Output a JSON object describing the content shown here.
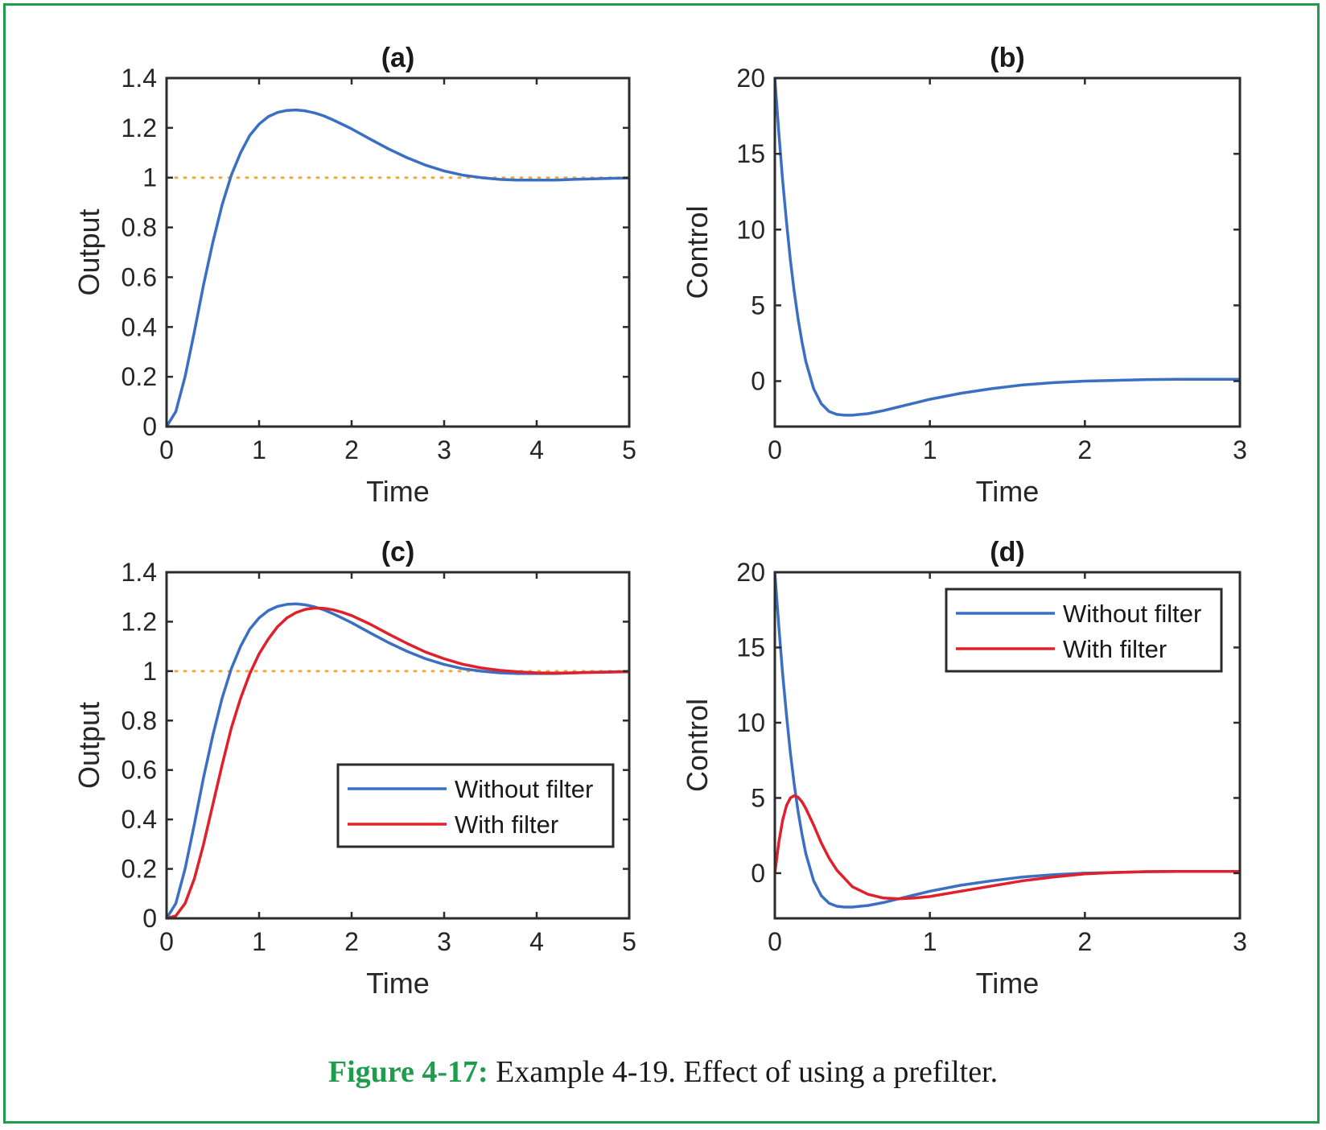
{
  "caption": {
    "figure_number": "Figure 4-17:",
    "text": "Example 4-19. Effect of using a prefilter."
  },
  "colors": {
    "without_filter": "#3a6fc4",
    "with_filter": "#e0202a",
    "reference": "#f2a93b",
    "axes": "#2b2b2b",
    "frame": "#1f9d4c",
    "figure_number": "#1f9d4c"
  },
  "chart_data": [
    {
      "panel": "a",
      "type": "line",
      "title": "(a)",
      "xlabel": "Time",
      "ylabel": "Output",
      "xlim": [
        0,
        5
      ],
      "ylim": [
        0,
        1.4
      ],
      "xticks": [
        0,
        1,
        2,
        3,
        4,
        5
      ],
      "yticks": [
        0,
        0.2,
        0.4,
        0.6,
        0.8,
        1,
        1.2,
        1.4
      ],
      "ytick_labels": [
        "0",
        "0.2",
        "0.4",
        "0.6",
        "0.8",
        "1",
        "1.2",
        "1.4"
      ],
      "grid": false,
      "reference_line": {
        "y": 1,
        "style": "dotted"
      },
      "series": [
        {
          "key": "without_filter",
          "x": [
            0,
            0.1,
            0.2,
            0.3,
            0.4,
            0.5,
            0.6,
            0.7,
            0.8,
            0.9,
            1.0,
            1.1,
            1.2,
            1.3,
            1.4,
            1.5,
            1.6,
            1.7,
            1.8,
            1.9,
            2.0,
            2.2,
            2.4,
            2.6,
            2.8,
            3.0,
            3.2,
            3.4,
            3.6,
            3.8,
            4.0,
            4.2,
            4.4,
            4.6,
            4.8,
            5.0
          ],
          "y": [
            0,
            0.06,
            0.2,
            0.38,
            0.57,
            0.74,
            0.89,
            1.01,
            1.1,
            1.17,
            1.215,
            1.245,
            1.262,
            1.27,
            1.272,
            1.268,
            1.26,
            1.248,
            1.232,
            1.214,
            1.196,
            1.155,
            1.115,
            1.08,
            1.05,
            1.027,
            1.01,
            1.0,
            0.993,
            0.99,
            0.99,
            0.99,
            0.993,
            0.995,
            0.997,
            0.998
          ]
        }
      ]
    },
    {
      "panel": "b",
      "type": "line",
      "title": "(b)",
      "xlabel": "Time",
      "ylabel": "Control",
      "xlim": [
        0,
        3
      ],
      "ylim": [
        -3,
        20
      ],
      "xticks": [
        0,
        1,
        2,
        3
      ],
      "yticks": [
        0,
        5,
        10,
        15,
        20
      ],
      "ytick_labels": [
        "0",
        "5",
        "10",
        "15",
        "20"
      ],
      "grid": false,
      "series": [
        {
          "key": "without_filter",
          "x": [
            0,
            0.025,
            0.05,
            0.075,
            0.1,
            0.125,
            0.15,
            0.175,
            0.2,
            0.25,
            0.3,
            0.35,
            0.4,
            0.45,
            0.5,
            0.55,
            0.6,
            0.7,
            0.8,
            0.9,
            1.0,
            1.2,
            1.4,
            1.6,
            1.8,
            2.0,
            2.2,
            2.4,
            2.6,
            2.8,
            3.0
          ],
          "y": [
            20,
            16.5,
            13.3,
            10.5,
            8.0,
            5.9,
            4.1,
            2.6,
            1.3,
            -0.5,
            -1.5,
            -2.0,
            -2.2,
            -2.25,
            -2.25,
            -2.2,
            -2.15,
            -1.95,
            -1.7,
            -1.45,
            -1.2,
            -0.8,
            -0.5,
            -0.25,
            -0.1,
            0.0,
            0.05,
            0.1,
            0.12,
            0.12,
            0.12
          ]
        }
      ]
    },
    {
      "panel": "c",
      "type": "line",
      "title": "(c)",
      "xlabel": "Time",
      "ylabel": "Output",
      "xlim": [
        0,
        5
      ],
      "ylim": [
        0,
        1.4
      ],
      "xticks": [
        0,
        1,
        2,
        3,
        4,
        5
      ],
      "yticks": [
        0,
        0.2,
        0.4,
        0.6,
        0.8,
        1,
        1.2,
        1.4
      ],
      "ytick_labels": [
        "0",
        "0.2",
        "0.4",
        "0.6",
        "0.8",
        "1",
        "1.2",
        "1.4"
      ],
      "grid": false,
      "legend": {
        "position": "bottom-right"
      },
      "reference_line": {
        "y": 1,
        "style": "dotted"
      },
      "series": [
        {
          "key": "without_filter",
          "name": "Without filter",
          "x": [
            0,
            0.1,
            0.2,
            0.3,
            0.4,
            0.5,
            0.6,
            0.7,
            0.8,
            0.9,
            1.0,
            1.1,
            1.2,
            1.3,
            1.4,
            1.5,
            1.6,
            1.7,
            1.8,
            1.9,
            2.0,
            2.2,
            2.4,
            2.6,
            2.8,
            3.0,
            3.2,
            3.4,
            3.6,
            3.8,
            4.0,
            4.2,
            4.4,
            4.6,
            4.8,
            5.0
          ],
          "y": [
            0,
            0.06,
            0.2,
            0.38,
            0.57,
            0.74,
            0.89,
            1.01,
            1.1,
            1.17,
            1.215,
            1.245,
            1.262,
            1.27,
            1.272,
            1.268,
            1.26,
            1.248,
            1.232,
            1.214,
            1.196,
            1.155,
            1.115,
            1.08,
            1.05,
            1.027,
            1.01,
            1.0,
            0.993,
            0.99,
            0.99,
            0.99,
            0.993,
            0.995,
            0.997,
            0.998
          ]
        },
        {
          "key": "with_filter",
          "name": "With filter",
          "x": [
            0,
            0.1,
            0.2,
            0.3,
            0.4,
            0.5,
            0.6,
            0.7,
            0.8,
            0.9,
            1.0,
            1.1,
            1.2,
            1.3,
            1.4,
            1.5,
            1.6,
            1.7,
            1.8,
            1.9,
            2.0,
            2.2,
            2.4,
            2.6,
            2.8,
            3.0,
            3.2,
            3.4,
            3.6,
            3.8,
            4.0,
            4.2,
            4.4,
            4.6,
            4.8,
            5.0
          ],
          "y": [
            0,
            0.01,
            0.06,
            0.16,
            0.3,
            0.46,
            0.62,
            0.77,
            0.89,
            0.99,
            1.07,
            1.13,
            1.18,
            1.215,
            1.237,
            1.25,
            1.255,
            1.254,
            1.248,
            1.238,
            1.225,
            1.19,
            1.15,
            1.112,
            1.077,
            1.05,
            1.028,
            1.013,
            1.003,
            0.997,
            0.993,
            0.992,
            0.993,
            0.995,
            0.996,
            0.998
          ]
        }
      ]
    },
    {
      "panel": "d",
      "type": "line",
      "title": "(d)",
      "xlabel": "Time",
      "ylabel": "Control",
      "xlim": [
        0,
        3
      ],
      "ylim": [
        -3,
        20
      ],
      "xticks": [
        0,
        1,
        2,
        3
      ],
      "yticks": [
        0,
        5,
        10,
        15,
        20
      ],
      "ytick_labels": [
        "0",
        "5",
        "10",
        "15",
        "20"
      ],
      "grid": false,
      "legend": {
        "position": "top-right"
      },
      "series": [
        {
          "key": "without_filter",
          "name": "Without filter",
          "x": [
            0,
            0.025,
            0.05,
            0.075,
            0.1,
            0.125,
            0.15,
            0.175,
            0.2,
            0.25,
            0.3,
            0.35,
            0.4,
            0.45,
            0.5,
            0.55,
            0.6,
            0.7,
            0.8,
            0.9,
            1.0,
            1.2,
            1.4,
            1.6,
            1.8,
            2.0,
            2.2,
            2.4,
            2.6,
            2.8,
            3.0
          ],
          "y": [
            20,
            16.5,
            13.3,
            10.5,
            8.0,
            5.9,
            4.1,
            2.6,
            1.3,
            -0.5,
            -1.5,
            -2.0,
            -2.2,
            -2.25,
            -2.25,
            -2.2,
            -2.15,
            -1.95,
            -1.7,
            -1.45,
            -1.2,
            -0.8,
            -0.5,
            -0.25,
            -0.1,
            0.0,
            0.05,
            0.1,
            0.12,
            0.12,
            0.12
          ]
        },
        {
          "key": "with_filter",
          "name": "With filter",
          "x": [
            0,
            0.025,
            0.05,
            0.075,
            0.1,
            0.125,
            0.15,
            0.175,
            0.2,
            0.25,
            0.3,
            0.35,
            0.4,
            0.5,
            0.6,
            0.7,
            0.8,
            0.9,
            1.0,
            1.2,
            1.4,
            1.6,
            1.8,
            2.0,
            2.2,
            2.4,
            2.6,
            2.8,
            3.0
          ],
          "y": [
            0,
            2.0,
            3.5,
            4.5,
            5.0,
            5.15,
            5.05,
            4.75,
            4.3,
            3.2,
            2.0,
            1.0,
            0.2,
            -0.9,
            -1.4,
            -1.65,
            -1.7,
            -1.65,
            -1.55,
            -1.2,
            -0.85,
            -0.5,
            -0.25,
            -0.05,
            0.05,
            0.1,
            0.12,
            0.12,
            0.12
          ]
        }
      ]
    }
  ]
}
